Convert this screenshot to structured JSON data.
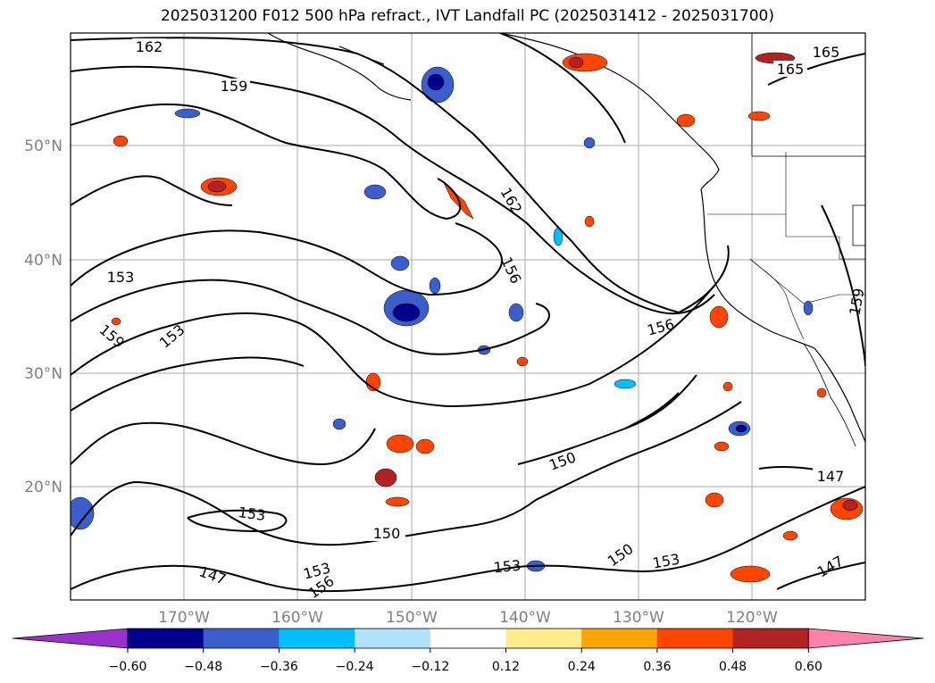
{
  "title": "2025031200 F012 500 hPa refract., IVT Landfall PC (2025031412 - 2025031700)",
  "map": {
    "lat_labels": [
      "50°N",
      "40°N",
      "30°N",
      "20°N"
    ],
    "lon_labels": [
      "170°W",
      "160°W",
      "150°W",
      "140°W",
      "130°W",
      "120°W"
    ],
    "contour_labels": [
      "162",
      "159",
      "165",
      "165",
      "162",
      "156",
      "153",
      "159",
      "153",
      "156",
      "159",
      "150",
      "147",
      "153",
      "150",
      "153",
      "156",
      "147",
      "153",
      "150",
      "153",
      "147"
    ]
  },
  "colorbar": {
    "ticks": [
      "−0.60",
      "−0.48",
      "−0.36",
      "−0.24",
      "−0.12",
      "0.12",
      "0.24",
      "0.36",
      "0.48",
      "0.60"
    ],
    "colors": [
      "#9932cc",
      "#00008b",
      "#3a5fcd",
      "#00bfff",
      "#b0e2ff",
      "#ffffff",
      "#ffec8b",
      "#ffa500",
      "#ff4500",
      "#b22222",
      "#ff82ab"
    ]
  }
}
